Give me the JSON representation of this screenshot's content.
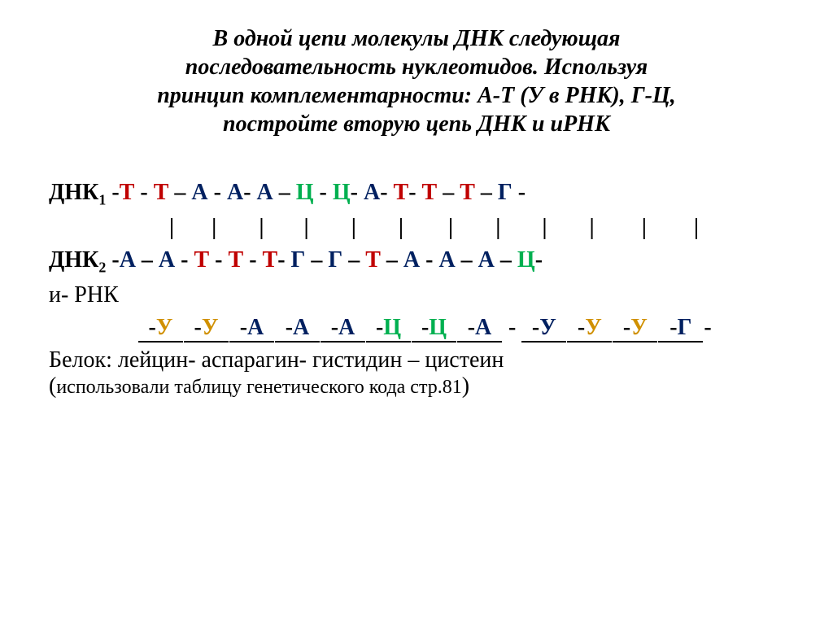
{
  "title": {
    "line1": "В одной цепи молекулы ДНК следующая",
    "line2": "последовательность нуклеотидов. Используя",
    "line3": "принцип комплементарности: А-Т (У в РНК), Г-Ц,",
    "line4": "постройте вторую цепь ДНК и иРНК"
  },
  "labels": {
    "dnk1": "ДНК",
    "dnk1_sub": "1",
    "dnk2": "ДНК",
    "dnk2_sub": "2",
    "rna": "и- РНК"
  },
  "colors": {
    "T": "#c00000",
    "A": "#002060",
    "G": "#002060",
    "C": "#00b050",
    "U_yellow": "#d09000",
    "U_blue": "#002060",
    "dash": "#000000",
    "background": "#ffffff"
  },
  "dnk1": [
    "Т",
    "Т",
    "А",
    "А",
    "А",
    "Ц",
    "Ц",
    "А",
    "Т",
    "Т",
    "Т",
    "Г"
  ],
  "dnk1_class": [
    "T",
    "T",
    "A",
    "A",
    "A",
    "C",
    "C",
    "A",
    "T",
    "T",
    "T",
    "G"
  ],
  "dnk2": [
    "А",
    "А",
    "Т",
    "Т",
    "Т",
    "Г",
    "Г",
    "Т",
    "А",
    "А",
    "А",
    "Ц"
  ],
  "dnk2_class": [
    "A",
    "A",
    "T",
    "T",
    "T",
    "G",
    "G",
    "T",
    "A",
    "A",
    "A",
    "C"
  ],
  "rna": [
    "У",
    "У",
    "А",
    "А",
    "А",
    "Ц",
    "Ц",
    "А",
    "У",
    "У",
    "У",
    "Г"
  ],
  "rna_class": [
    "U",
    "U",
    "A",
    "A",
    "A",
    "C",
    "C",
    "A",
    "Ublue",
    "U",
    "U",
    "G"
  ],
  "protein": "Белок: лейцин- аспарагин- гистидин – цистеин",
  "note_prefix": "(",
  "note_text": "использовали таблицу генетического кода стр.81",
  "note_suffix": ")",
  "fonts": {
    "title_size": 28,
    "seq_size": 28,
    "sub_size": 18,
    "note_inner_size": 24
  }
}
